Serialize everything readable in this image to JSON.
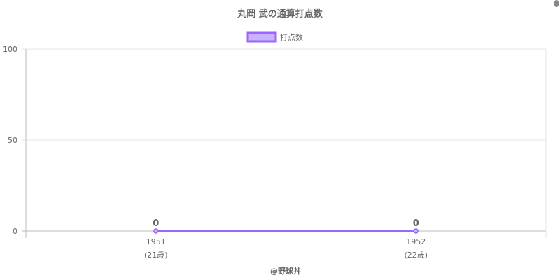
{
  "chart_data": {
    "type": "line",
    "title": "丸岡 武の通算打点数",
    "categories": [
      "1951",
      "1952"
    ],
    "category_sublabels": [
      "(21歳)",
      "(22歳)"
    ],
    "series": [
      {
        "name": "打点数",
        "values": [
          0,
          0
        ],
        "color": "#9966ff",
        "fill": "#c9b3ff"
      }
    ],
    "data_labels": [
      "0",
      "0"
    ],
    "ylim": [
      0,
      100
    ],
    "yticks": [
      "0",
      "50",
      "100"
    ],
    "grid": true,
    "legend": "top"
  },
  "credit": "@野球丼"
}
